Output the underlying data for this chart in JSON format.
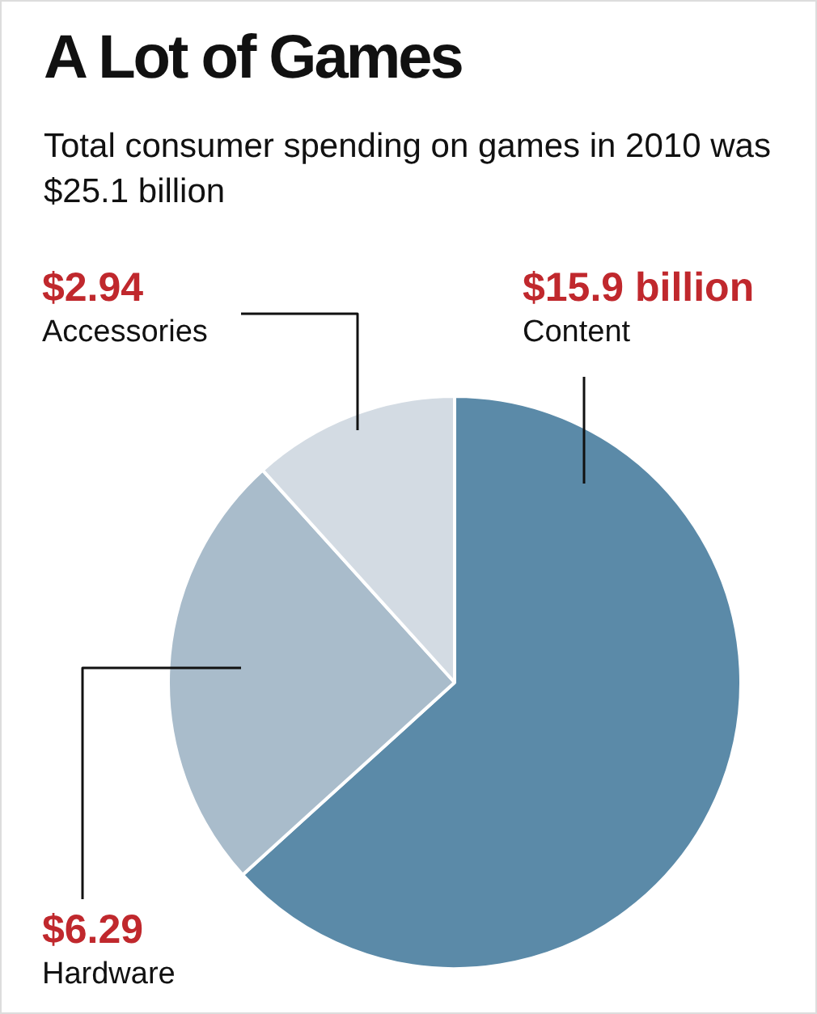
{
  "chart_data": {
    "type": "pie",
    "title": "A Lot of Games",
    "subtitle": "Total consumer spending on games in 2010 was $25.1 billion",
    "categories": [
      "Content",
      "Hardware",
      "Accessories"
    ],
    "values": [
      15.9,
      6.29,
      2.94
    ],
    "colors": [
      "#5b8aa8",
      "#a9bccb",
      "#d3dbe3"
    ],
    "value_labels": [
      "$15.9 billion",
      "$6.29",
      "$2.94"
    ],
    "legend": false
  }
}
